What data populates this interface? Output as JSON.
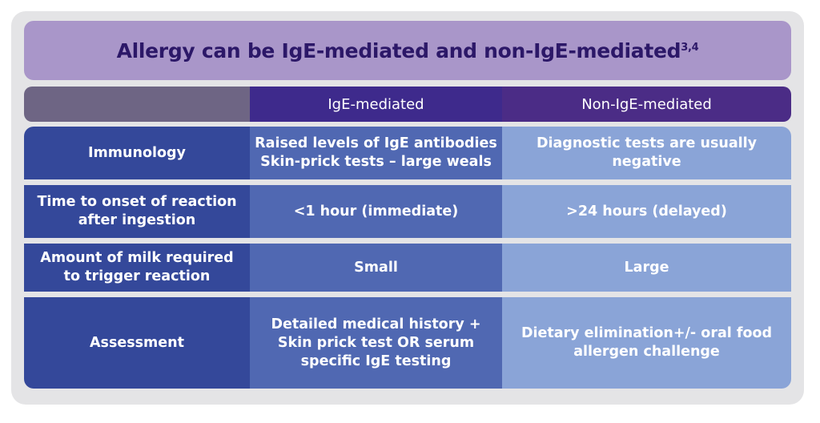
{
  "title": {
    "text": "Allergy can be IgE-mediated and non-IgE-mediated",
    "superscript": "3,4"
  },
  "table": {
    "header": [
      "IgE-mediated",
      "Non-IgE-mediated"
    ],
    "rows": [
      {
        "label": [
          "Immunology"
        ],
        "ige": [
          "Raised levels of IgE antibodies",
          "Skin-prick tests – large weals"
        ],
        "non_ige": [
          "Diagnostic tests are usually negative"
        ]
      },
      {
        "label": [
          "Time to onset of reaction",
          "after ingestion"
        ],
        "ige": [
          "<1 hour (immediate)"
        ],
        "non_ige": [
          ">24 hours (delayed)"
        ]
      },
      {
        "label": [
          "Amount of milk required",
          "to trigger reaction"
        ],
        "ige": [
          "Small"
        ],
        "non_ige": [
          "Large"
        ]
      },
      {
        "label": [
          "Assessment"
        ],
        "ige": [
          "Detailed medical history +",
          "Skin prick test OR serum",
          "specific IgE testing"
        ],
        "non_ige": [
          "Dietary elimination+/- oral food",
          "allergen challenge"
        ]
      }
    ]
  }
}
